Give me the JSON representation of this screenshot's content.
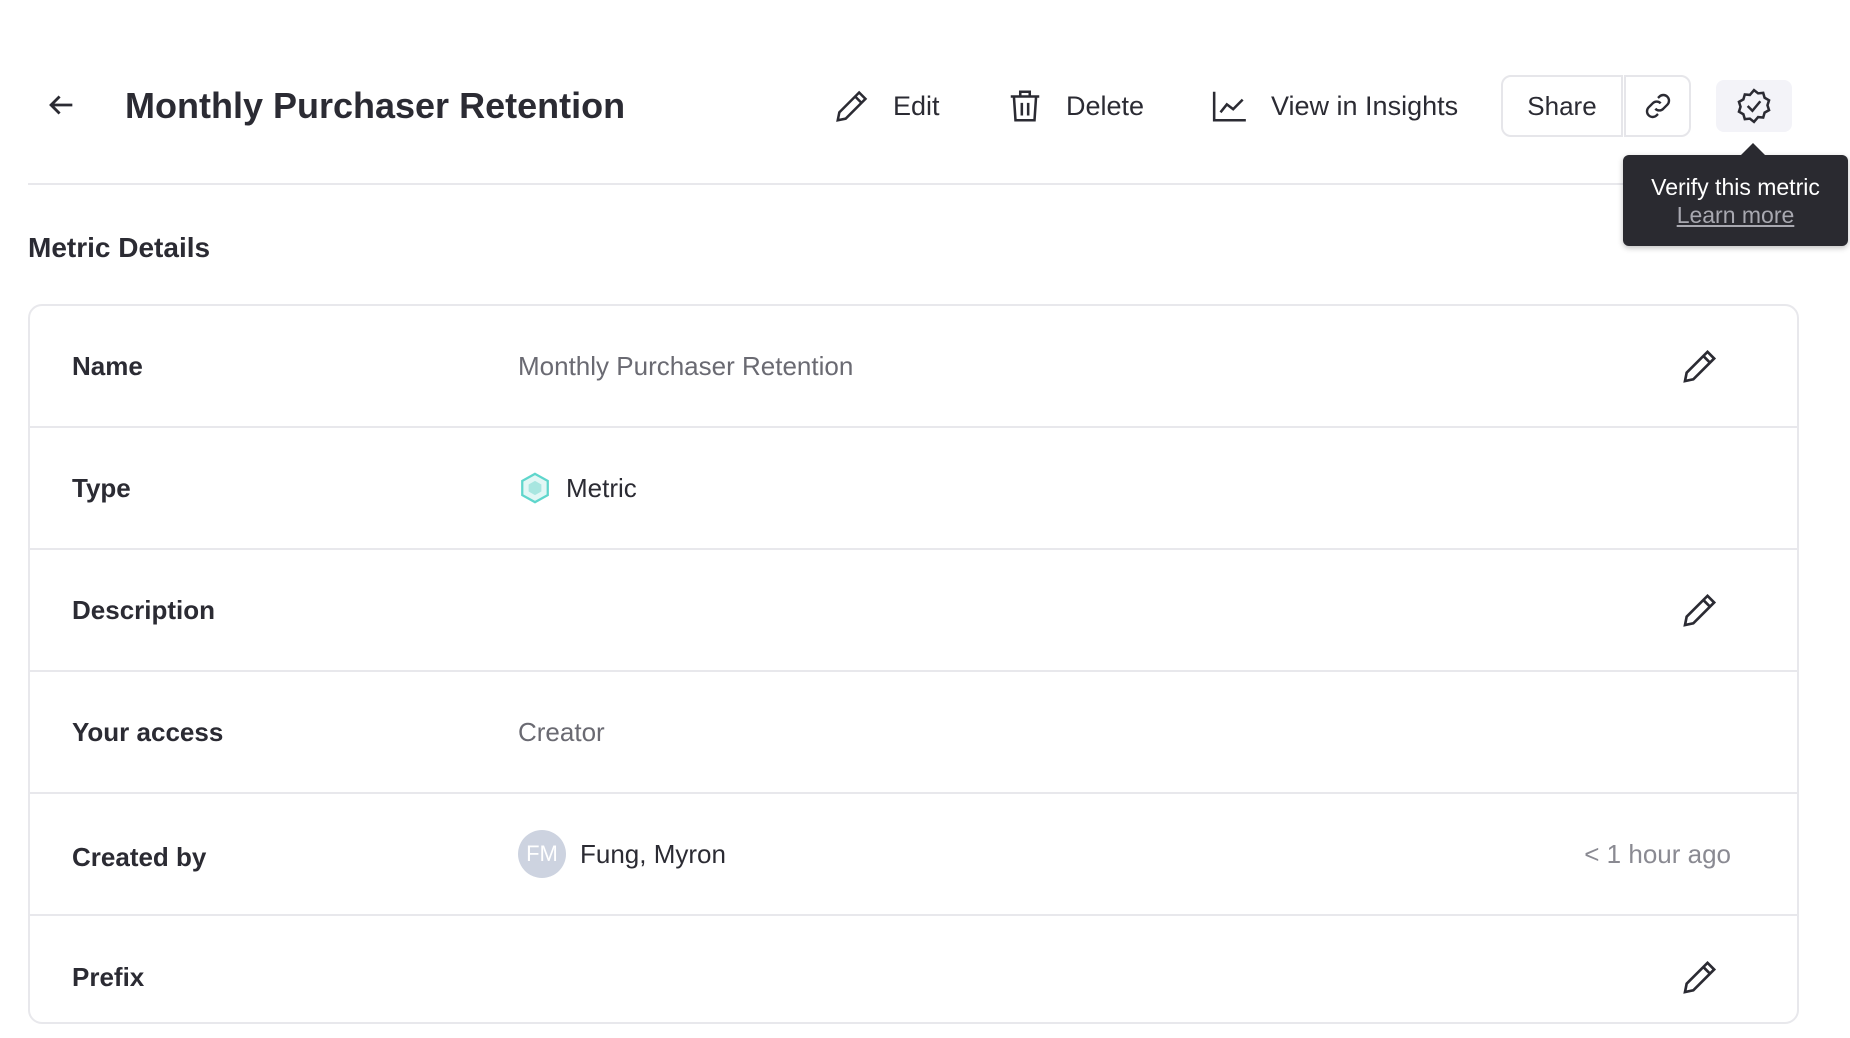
{
  "header": {
    "title": "Monthly Purchaser Retention",
    "edit_label": "Edit",
    "delete_label": "Delete",
    "insights_label": "View in Insights",
    "share_label": "Share"
  },
  "tooltip": {
    "text": "Verify this metric",
    "link": "Learn more"
  },
  "section_title": "Metric Details",
  "rows": [
    {
      "label": "Name",
      "value": "Monthly Purchaser Retention"
    },
    {
      "label": "Type",
      "value": "Metric",
      "icon": "metric-hexagon-icon",
      "icon_color": "#5fd6cc"
    },
    {
      "label": "Description",
      "value": ""
    },
    {
      "label": "Your access",
      "value": "Creator"
    },
    {
      "label": "Created by",
      "avatar": "FM",
      "value": "Fung, Myron",
      "timestamp": "< 1 hour ago"
    },
    {
      "label": "Prefix",
      "value": ""
    }
  ]
}
